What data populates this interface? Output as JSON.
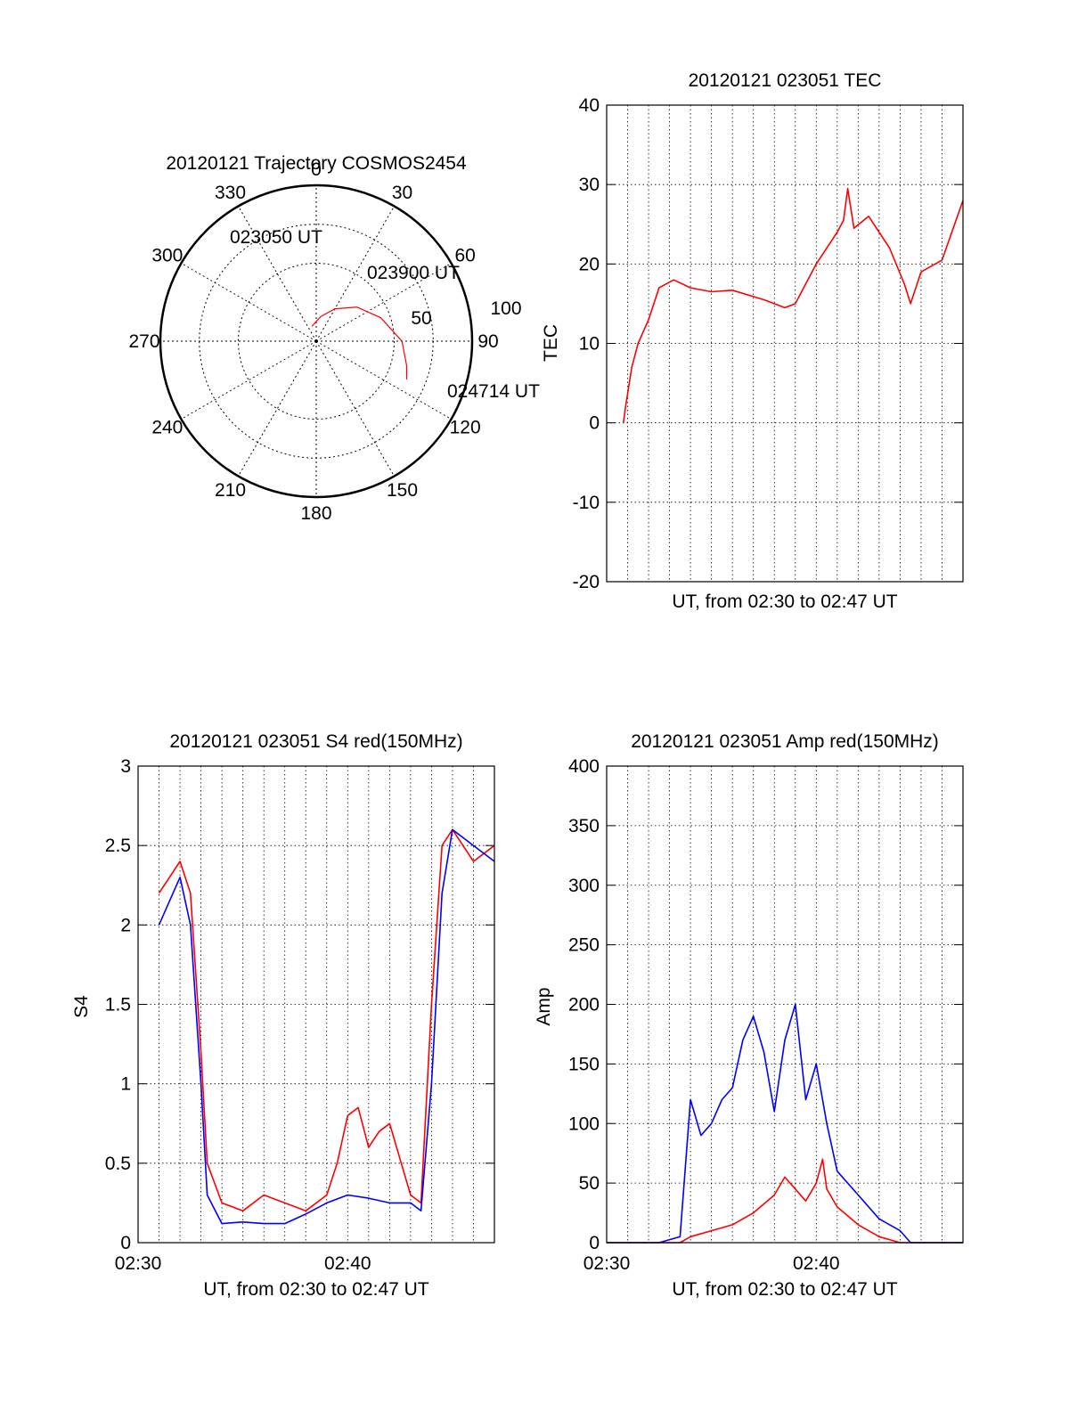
{
  "colors": {
    "red": "#ff0000",
    "blue": "#0000ff",
    "axis": "#000000"
  },
  "chart_data": [
    {
      "type": "polar",
      "title": "20120121 Trajectory COSMOS2454",
      "azimuth_labels": [
        "0",
        "30",
        "60",
        "90",
        "120",
        "150",
        "180",
        "210",
        "240",
        "270",
        "300",
        "330"
      ],
      "radial_labels": [
        "50",
        "100"
      ],
      "series": [
        {
          "color": "red",
          "points": [
            [
              344,
              90
            ],
            [
              10,
              84
            ],
            [
              30,
              76
            ],
            [
              50,
              66
            ],
            [
              70,
              56
            ],
            [
              90,
              45
            ],
            [
              105,
              40
            ],
            [
              113,
              37
            ]
          ]
        }
      ],
      "annotations": [
        "023050 UT",
        "023900 UT",
        "024714 UT"
      ]
    },
    {
      "type": "line",
      "title": "20120121 023051 TEC",
      "xlabel": "UT, from 02:30 to 02:47 UT",
      "ylabel": "TEC",
      "ylim": [
        -20,
        40
      ],
      "yticks": [
        "-20",
        "-10",
        "0",
        "10",
        "20",
        "30",
        "40"
      ],
      "xlim_minutes": [
        0,
        17
      ],
      "grid": true,
      "series": [
        {
          "color": "red",
          "x": [
            0.8,
            0.9,
            1.2,
            1.5,
            2.0,
            2.5,
            3.2,
            4.0,
            5.0,
            6.0,
            7.5,
            8.5,
            9.0,
            10.0,
            11.0,
            11.3,
            11.5,
            11.8,
            12.5,
            13.5,
            14.2,
            14.5,
            15.0,
            16.0,
            17.0
          ],
          "y": [
            0,
            2,
            7,
            10,
            13,
            17,
            18,
            17,
            16.5,
            16.7,
            15.5,
            14.5,
            15,
            20,
            24,
            25.5,
            29.5,
            24.5,
            26,
            22,
            17.5,
            15,
            19,
            20.5,
            28
          ]
        }
      ]
    },
    {
      "type": "line",
      "title": "20120121 023051 S4 red(150MHz)",
      "xlabel": "UT, from 02:30 to 02:47 UT",
      "ylabel": "S4",
      "ylim": [
        0,
        3
      ],
      "yticks": [
        "0",
        "0.5",
        "1",
        "1.5",
        "2",
        "2.5",
        "3"
      ],
      "xticks": [
        "02:30",
        "02:40"
      ],
      "xlim_minutes": [
        0,
        17
      ],
      "grid": true,
      "series": [
        {
          "color": "red",
          "x": [
            1.0,
            2.0,
            2.5,
            3.0,
            3.3,
            4.0,
            5.0,
            6.0,
            7.0,
            8.0,
            9.0,
            9.5,
            10.0,
            10.5,
            11.0,
            11.5,
            12.0,
            13.0,
            13.5,
            14.0,
            14.5,
            15.0,
            16.0,
            17.0
          ],
          "y": [
            2.2,
            2.4,
            2.2,
            1.2,
            0.5,
            0.25,
            0.2,
            0.3,
            0.25,
            0.2,
            0.3,
            0.5,
            0.8,
            0.85,
            0.6,
            0.7,
            0.75,
            0.3,
            0.25,
            1.5,
            2.5,
            2.6,
            2.4,
            2.5
          ]
        },
        {
          "color": "blue",
          "x": [
            1.0,
            2.0,
            2.5,
            3.0,
            3.3,
            4.0,
            5.0,
            6.0,
            7.0,
            8.0,
            9.0,
            10.0,
            11.0,
            12.0,
            13.0,
            13.5,
            14.0,
            14.5,
            15.0,
            16.0,
            17.0
          ],
          "y": [
            2.0,
            2.3,
            2.0,
            1.0,
            0.3,
            0.12,
            0.13,
            0.12,
            0.12,
            0.18,
            0.25,
            0.3,
            0.28,
            0.25,
            0.25,
            0.2,
            1.0,
            2.2,
            2.6,
            2.5,
            2.4
          ]
        }
      ]
    },
    {
      "type": "line",
      "title": "20120121 023051 Amp red(150MHz)",
      "xlabel": "UT, from 02:30 to 02:47 UT",
      "ylabel": "Amp",
      "ylim": [
        0,
        400
      ],
      "yticks": [
        "0",
        "50",
        "100",
        "150",
        "200",
        "250",
        "300",
        "350",
        "400"
      ],
      "xticks": [
        "02:30",
        "02:40"
      ],
      "xlim_minutes": [
        0,
        17
      ],
      "grid": true,
      "series": [
        {
          "color": "red",
          "x": [
            0,
            3.5,
            4.0,
            5.0,
            6.0,
            7.0,
            8.0,
            8.5,
            9.0,
            9.5,
            10.0,
            10.3,
            10.5,
            11.0,
            12.0,
            13.0,
            14.0,
            14.5,
            17.0
          ],
          "y": [
            0,
            0,
            5,
            10,
            15,
            25,
            40,
            55,
            45,
            35,
            50,
            70,
            45,
            30,
            15,
            5,
            0,
            0,
            0
          ]
        },
        {
          "color": "blue",
          "x": [
            0,
            2.5,
            3.5,
            4.0,
            4.5,
            5.0,
            5.5,
            6.0,
            6.5,
            7.0,
            7.5,
            8.0,
            8.5,
            9.0,
            9.5,
            10.0,
            10.5,
            11.0,
            12.0,
            13.0,
            14.0,
            14.5,
            17.0
          ],
          "y": [
            0,
            0,
            5,
            120,
            90,
            100,
            120,
            130,
            170,
            190,
            160,
            110,
            170,
            200,
            120,
            150,
            100,
            60,
            40,
            20,
            10,
            0,
            0
          ]
        }
      ]
    }
  ]
}
